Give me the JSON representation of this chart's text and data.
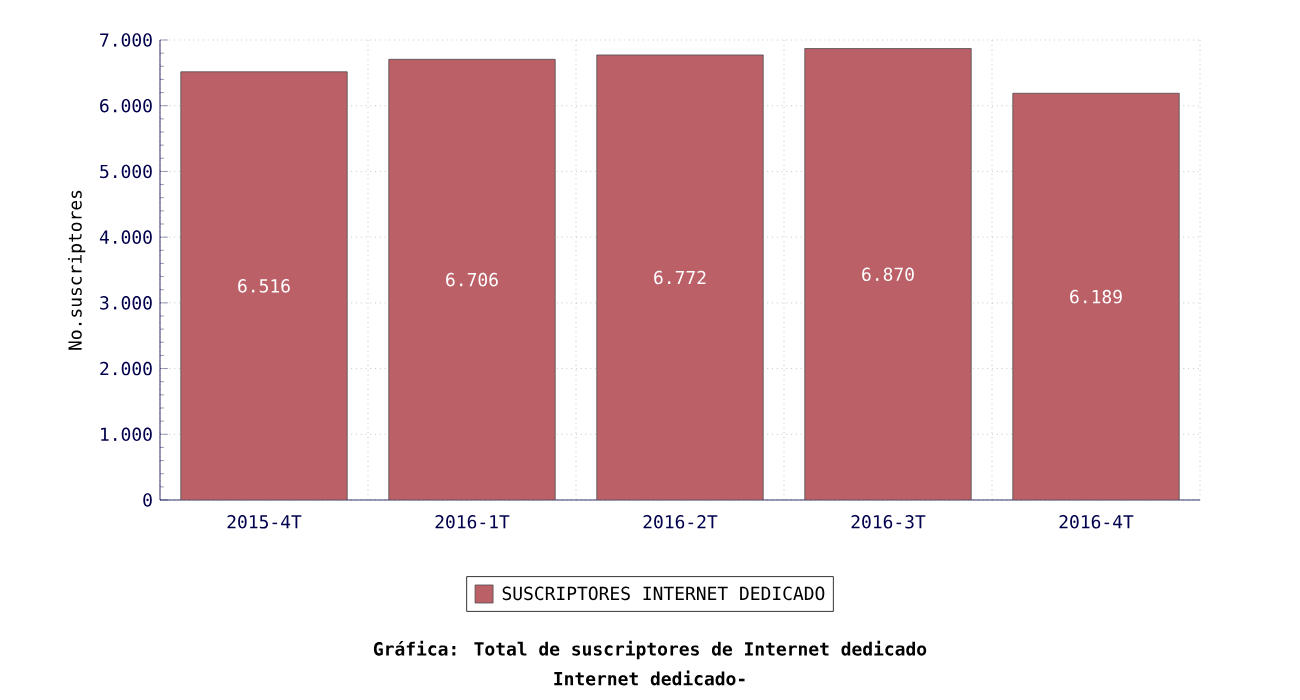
{
  "chart_data": {
    "type": "bar",
    "title": "Gráfica: Total de suscriptores de Internet dedicado",
    "subtitle": "Internet dedicado-",
    "ylabel": "No.suscriptores",
    "categories": [
      "2015-4T",
      "2016-1T",
      "2016-2T",
      "2016-3T",
      "2016-4T"
    ],
    "series": [
      {
        "name": "SUSCRIPTORES INTERNET DEDICADO",
        "color": "#bc6068",
        "values": [
          6516,
          6706,
          6772,
          6870,
          6189
        ],
        "value_labels": [
          "6.516",
          "6.706",
          "6.772",
          "6.870",
          "6.189"
        ]
      }
    ],
    "ylim": [
      0,
      7000
    ],
    "yticks": [
      0,
      {
        "value": 1000,
        "label": "1.000"
      },
      {
        "value": 2000,
        "label": "2.000"
      },
      {
        "value": 3000,
        "label": "3.000"
      },
      {
        "value": 4000,
        "label": "4.000"
      },
      {
        "value": 5000,
        "label": "5.000"
      },
      {
        "value": 6000,
        "label": "6.000"
      },
      {
        "value": 7000,
        "label": "7.000"
      }
    ],
    "grid": true,
    "legend": "bottom"
  }
}
